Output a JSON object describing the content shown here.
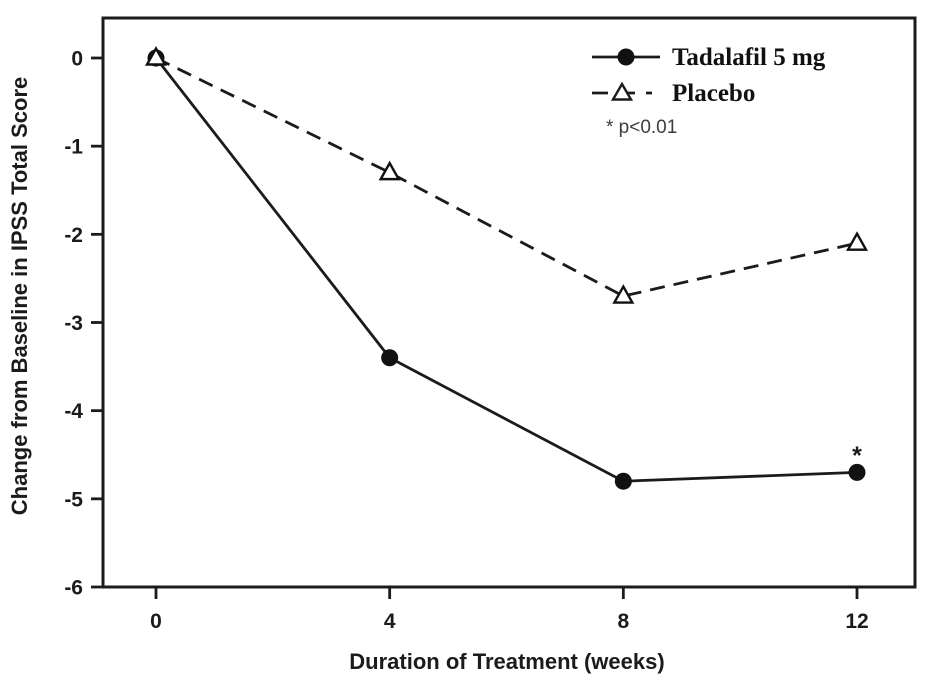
{
  "figure": {
    "background": "#ffffff",
    "ink_color": "#1b1b1b",
    "note_color": "#3d3d3d"
  },
  "chart_data": {
    "type": "line",
    "title": "",
    "xlabel": "Duration of Treatment (weeks)",
    "ylabel": "Change from Baseline in IPSS Total Score",
    "x": [
      0,
      4,
      8,
      12
    ],
    "xtick_labels": [
      "0",
      "4",
      "8",
      "12"
    ],
    "yticks": [
      0,
      -1,
      -2,
      -3,
      -4,
      -5,
      -6
    ],
    "xlim": [
      -0.9,
      13
    ],
    "ylim": [
      -6,
      0.45
    ],
    "grid": false,
    "legend_position": "top-right-inside",
    "series": [
      {
        "name": "Tadalafil 5 mg",
        "line_style": "solid",
        "marker": "filled-circle",
        "values": [
          0,
          -3.4,
          -4.8,
          -4.7
        ]
      },
      {
        "name": "Placebo",
        "line_style": "dashed",
        "marker": "open-triangle",
        "values": [
          0,
          -1.3,
          -2.7,
          -2.1
        ]
      }
    ],
    "sig_marker": "*",
    "sig_marker_at": {
      "series": "Tadalafil 5 mg",
      "week": 12
    },
    "p_note": "* p<0.01"
  }
}
